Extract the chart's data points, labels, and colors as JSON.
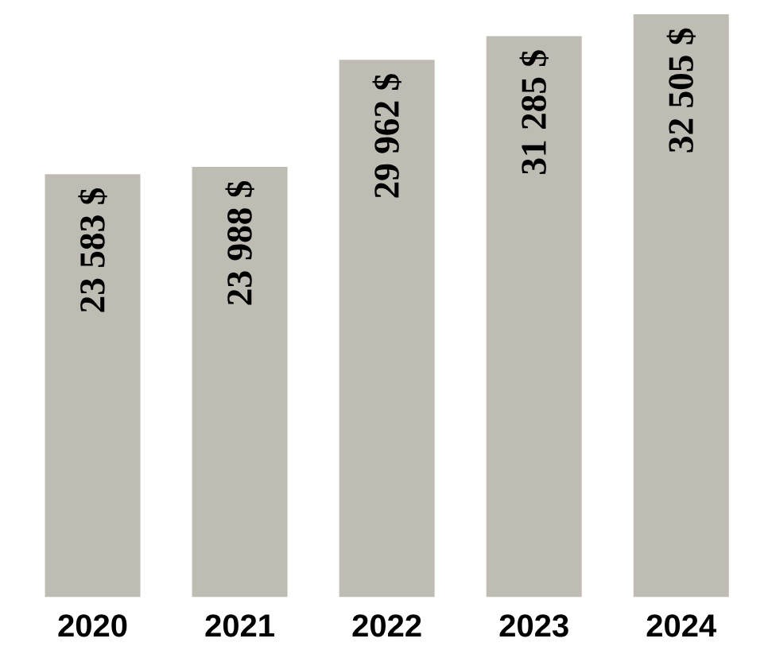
{
  "chart_data": {
    "type": "bar",
    "categories": [
      "2020",
      "2021",
      "2022",
      "2023",
      "2024"
    ],
    "values": [
      23583,
      23988,
      29962,
      31285,
      32505
    ],
    "value_labels": [
      "23 583 $",
      "23 988 $",
      "29 962 $",
      "31 285 $",
      "32 505 $"
    ],
    "color": "#bfbcb4"
  }
}
